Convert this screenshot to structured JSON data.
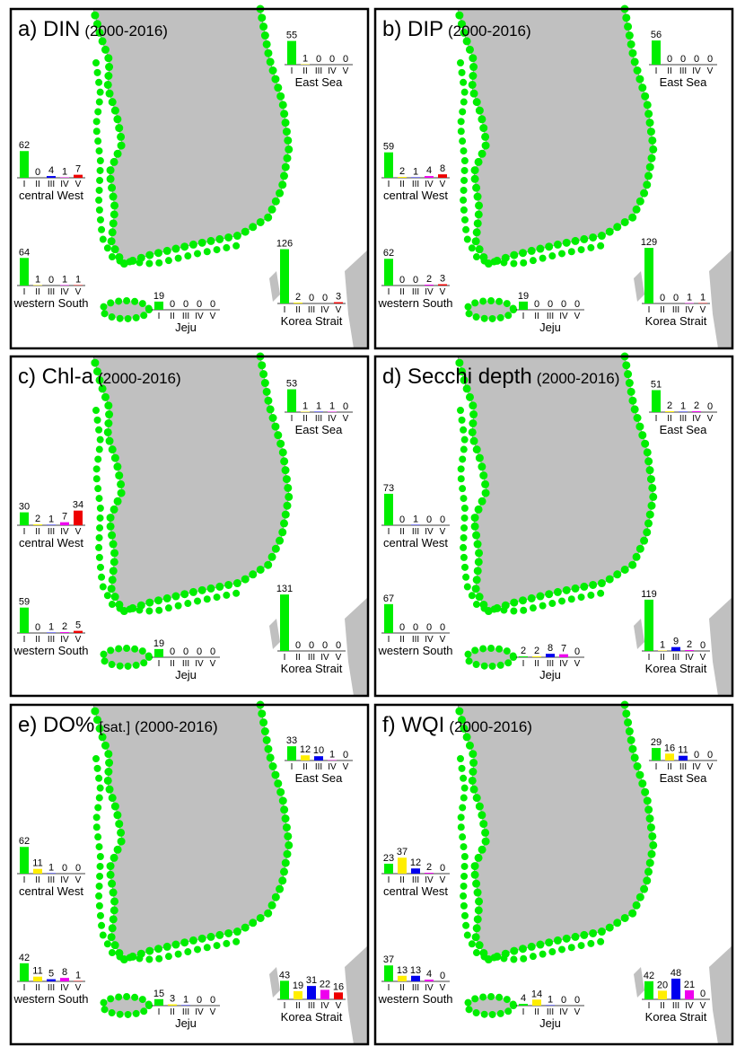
{
  "chart_data": [
    {
      "type": "bar",
      "title": "a) DIN",
      "subtitle": "(2000-2016)",
      "categories": [
        "I",
        "II",
        "III",
        "IV",
        "V"
      ],
      "colors": [
        "#00ee00",
        "#ffee00",
        "#0000ee",
        "#ee00ee",
        "#ee0000"
      ],
      "regions": [
        {
          "name": "East Sea",
          "values": [
            55,
            1,
            0,
            0,
            0
          ]
        },
        {
          "name": "central West",
          "values": [
            62,
            0,
            4,
            1,
            7
          ]
        },
        {
          "name": "western South",
          "values": [
            64,
            1,
            0,
            1,
            1
          ]
        },
        {
          "name": "Jeju",
          "values": [
            19,
            0,
            0,
            0,
            0
          ]
        },
        {
          "name": "Korea Strait",
          "values": [
            126,
            2,
            0,
            0,
            3
          ]
        }
      ]
    },
    {
      "type": "bar",
      "title": "b) DIP",
      "subtitle": "(2000-2016)",
      "categories": [
        "I",
        "II",
        "III",
        "IV",
        "V"
      ],
      "colors": [
        "#00ee00",
        "#ffee00",
        "#0000ee",
        "#ee00ee",
        "#ee0000"
      ],
      "regions": [
        {
          "name": "East Sea",
          "values": [
            56,
            0,
            0,
            0,
            0
          ]
        },
        {
          "name": "central West",
          "values": [
            59,
            2,
            1,
            4,
            8
          ]
        },
        {
          "name": "western South",
          "values": [
            62,
            0,
            0,
            2,
            3
          ]
        },
        {
          "name": "Jeju",
          "values": [
            19,
            0,
            0,
            0,
            0
          ]
        },
        {
          "name": "Korea Strait",
          "values": [
            129,
            0,
            0,
            1,
            1
          ]
        }
      ]
    },
    {
      "type": "bar",
      "title": "c) Chl-a",
      "subtitle": "(2000-2016)",
      "categories": [
        "I",
        "II",
        "III",
        "IV",
        "V"
      ],
      "colors": [
        "#00ee00",
        "#ffee00",
        "#0000ee",
        "#ee00ee",
        "#ee0000"
      ],
      "regions": [
        {
          "name": "East Sea",
          "values": [
            53,
            1,
            1,
            1,
            0
          ]
        },
        {
          "name": "central West",
          "values": [
            30,
            2,
            1,
            7,
            34
          ]
        },
        {
          "name": "western South",
          "values": [
            59,
            0,
            1,
            2,
            5
          ]
        },
        {
          "name": "Jeju",
          "values": [
            19,
            0,
            0,
            0,
            0
          ]
        },
        {
          "name": "Korea Strait",
          "values": [
            131,
            0,
            0,
            0,
            0
          ]
        }
      ]
    },
    {
      "type": "bar",
      "title": "d) Secchi depth",
      "subtitle": "(2000-2016)",
      "categories": [
        "I",
        "II",
        "III",
        "IV",
        "V"
      ],
      "colors": [
        "#00ee00",
        "#ffee00",
        "#0000ee",
        "#ee00ee",
        "#ee0000"
      ],
      "regions": [
        {
          "name": "East Sea",
          "values": [
            51,
            2,
            1,
            2,
            0
          ]
        },
        {
          "name": "central West",
          "values": [
            73,
            0,
            1,
            0,
            0
          ]
        },
        {
          "name": "western South",
          "values": [
            67,
            0,
            0,
            0,
            0
          ]
        },
        {
          "name": "Jeju",
          "values": [
            2,
            2,
            8,
            7,
            0
          ]
        },
        {
          "name": "Korea Strait",
          "values": [
            119,
            1,
            9,
            2,
            0
          ]
        }
      ]
    },
    {
      "type": "bar",
      "title": "e) DO%",
      "unit": "[sat.]",
      "subtitle": "(2000-2016)",
      "categories": [
        "I",
        "II",
        "III",
        "IV",
        "V"
      ],
      "colors": [
        "#00ee00",
        "#ffee00",
        "#0000ee",
        "#ee00ee",
        "#ee0000"
      ],
      "regions": [
        {
          "name": "East Sea",
          "values": [
            33,
            12,
            10,
            1,
            0
          ]
        },
        {
          "name": "central West",
          "values": [
            62,
            11,
            1,
            0,
            0
          ]
        },
        {
          "name": "western South",
          "values": [
            42,
            11,
            5,
            8,
            1
          ]
        },
        {
          "name": "Jeju",
          "values": [
            15,
            3,
            1,
            0,
            0
          ]
        },
        {
          "name": "Korea Strait",
          "values": [
            43,
            19,
            31,
            22,
            16
          ]
        }
      ]
    },
    {
      "type": "bar",
      "title": "f) WQI",
      "subtitle": "(2000-2016)",
      "categories": [
        "I",
        "II",
        "III",
        "IV",
        "V"
      ],
      "colors": [
        "#00ee00",
        "#ffee00",
        "#0000ee",
        "#ee00ee",
        "#ee0000"
      ],
      "regions": [
        {
          "name": "East Sea",
          "values": [
            29,
            16,
            11,
            0,
            0
          ]
        },
        {
          "name": "central West",
          "values": [
            23,
            37,
            12,
            2,
            0
          ]
        },
        {
          "name": "western South",
          "values": [
            37,
            13,
            13,
            4,
            0
          ]
        },
        {
          "name": "Jeju",
          "values": [
            4,
            14,
            1,
            0,
            0
          ]
        },
        {
          "name": "Korea Strait",
          "values": [
            42,
            20,
            48,
            21,
            0
          ]
        }
      ]
    }
  ]
}
